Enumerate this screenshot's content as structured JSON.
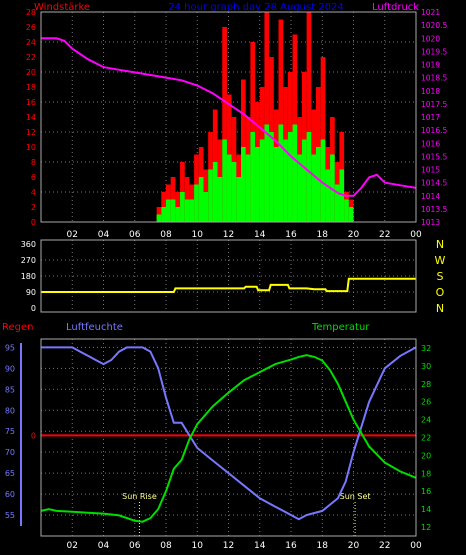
{
  "header": {
    "left_label": "Windstärke",
    "center_label": "24 hour graph day  28 August 2024",
    "right_label": "Luftdruck"
  },
  "x_axis": {
    "ticks": [
      "02",
      "04",
      "06",
      "08",
      "10",
      "12",
      "14",
      "16",
      "18",
      "20",
      "22",
      "00"
    ],
    "range_hours": [
      0,
      24
    ]
  },
  "colors": {
    "gust": "#ff0000",
    "average": "#00ff00",
    "pressure": "#ff00ff",
    "direction": "#ffff00",
    "rain": "#ff0000",
    "humidity": "#7777ff",
    "temperature": "#00dd00",
    "grid": "#777777",
    "frame": "#aaaaaa",
    "wind_axis": "#ff0000",
    "center_label": "#0000ff"
  },
  "chart_data": [
    {
      "type": "bar",
      "title": "",
      "ylabel": "Windstärke",
      "ylim": [
        0,
        28
      ],
      "yticks": [
        0,
        2,
        4,
        6,
        8,
        10,
        12,
        14,
        16,
        18,
        20,
        22,
        24,
        26,
        28
      ],
      "grid": true,
      "series": [
        {
          "name": "",
          "color": "#ff0000",
          "x_hours": [
            7.4,
            7.7,
            8.0,
            8.3,
            8.6,
            8.9,
            9.2,
            9.5,
            9.8,
            10.1,
            10.4,
            10.7,
            11.0,
            11.3,
            11.6,
            11.9,
            12.2,
            12.5,
            12.8,
            13.1,
            13.4,
            13.7,
            14.0,
            14.3,
            14.6,
            14.9,
            15.2,
            15.5,
            15.8,
            16.1,
            16.4,
            16.7,
            17.0,
            17.3,
            17.6,
            17.9,
            18.2,
            18.5,
            18.8,
            19.1,
            19.4,
            19.7
          ],
          "values": [
            2,
            4,
            5,
            6,
            4,
            8,
            6,
            5,
            9,
            10,
            7,
            12,
            15,
            11,
            26,
            17,
            14,
            9,
            19,
            14,
            24,
            16,
            18,
            28,
            22,
            15,
            27,
            18,
            20,
            25,
            14,
            20,
            28,
            15,
            18,
            22,
            10,
            14,
            8,
            12,
            4,
            3
          ]
        },
        {
          "name": "",
          "color": "#00ff00",
          "x_hours": [
            7.4,
            7.7,
            8.0,
            8.3,
            8.6,
            8.9,
            9.2,
            9.5,
            9.8,
            10.1,
            10.4,
            10.7,
            11.0,
            11.3,
            11.6,
            11.9,
            12.2,
            12.5,
            12.8,
            13.1,
            13.4,
            13.7,
            14.0,
            14.3,
            14.6,
            14.9,
            15.2,
            15.5,
            15.8,
            16.1,
            16.4,
            16.7,
            17.0,
            17.3,
            17.6,
            17.9,
            18.2,
            18.5,
            18.8,
            19.1,
            19.4,
            19.7
          ],
          "values": [
            1,
            2,
            3,
            3,
            2,
            4,
            3,
            3,
            5,
            6,
            4,
            7,
            8,
            6,
            11,
            9,
            8,
            6,
            10,
            9,
            12,
            10,
            11,
            13,
            12,
            10,
            13,
            11,
            12,
            13,
            9,
            11,
            12,
            9,
            10,
            11,
            7,
            9,
            5,
            7,
            3,
            2
          ]
        }
      ]
    },
    {
      "type": "line",
      "title": "",
      "ylabel": "Luftdruck",
      "ylim": [
        1013,
        1021
      ],
      "yticks": [
        1013,
        1013.5,
        1014,
        1014.5,
        1015,
        1015.5,
        1016,
        1016.5,
        1017,
        1017.5,
        1018,
        1018.5,
        1019,
        1019.5,
        1020,
        1020.5,
        1021
      ],
      "series": [
        {
          "name": "",
          "color": "#ff00ff",
          "x_hours": [
            0,
            1,
            1.5,
            2,
            3,
            4,
            5,
            6,
            7,
            8,
            9,
            10,
            11,
            12,
            13,
            14,
            15,
            16,
            17,
            18,
            19,
            19.5,
            20,
            20.5,
            21,
            21.5,
            22,
            23,
            24
          ],
          "values": [
            1020,
            1020,
            1019.9,
            1019.6,
            1019.2,
            1018.9,
            1018.8,
            1018.7,
            1018.6,
            1018.5,
            1018.4,
            1018.2,
            1017.9,
            1017.5,
            1017.1,
            1016.6,
            1016.1,
            1015.5,
            1015.0,
            1014.5,
            1014.1,
            1014.0,
            1014.0,
            1014.3,
            1014.7,
            1014.8,
            1014.5,
            1014.4,
            1014.3
          ]
        }
      ]
    },
    {
      "type": "line",
      "title": "",
      "ylabel": "",
      "ylim": [
        0,
        360
      ],
      "yticks": [
        0,
        90,
        180,
        270,
        360
      ],
      "right_labels": [
        "N",
        "W",
        "S",
        "O",
        "N"
      ],
      "series": [
        {
          "name": "",
          "color": "#ffff00",
          "x_hours": [
            0,
            8.5,
            8.6,
            13.0,
            13.1,
            13.8,
            13.9,
            14.6,
            14.7,
            15.8,
            15.9,
            17.0,
            17.5,
            18.2,
            18.3,
            19.6,
            19.7,
            24
          ],
          "values": [
            90,
            90,
            110,
            110,
            120,
            120,
            100,
            100,
            130,
            130,
            110,
            110,
            105,
            105,
            95,
            95,
            165,
            165
          ]
        }
      ]
    },
    {
      "type": "line",
      "title": "",
      "labels": {
        "rain": "Regen",
        "humidity": "Luftfeuchte",
        "temperature": "Temperatur"
      },
      "left_axis": {
        "ylim": [
          50,
          97
        ],
        "yticks": [
          55,
          60,
          65,
          70,
          75,
          80,
          85,
          90,
          95
        ]
      },
      "rain_axis": {
        "ticks": [
          0
        ]
      },
      "right_axis": {
        "ylim": [
          11,
          33
        ],
        "yticks": [
          12,
          14,
          16,
          18,
          20,
          22,
          24,
          26,
          28,
          30,
          32
        ]
      },
      "annotations": [
        {
          "label": "Sun Rise",
          "x_hour": 6.3
        },
        {
          "label": "Sun Set",
          "x_hour": 20.1
        }
      ],
      "series": [
        {
          "name": "Regen",
          "color": "#ff0000",
          "axis": "rain",
          "x_hours": [
            0,
            24
          ],
          "values": [
            0,
            0
          ]
        },
        {
          "name": "Luftfeuchte",
          "color": "#7777ff",
          "axis": "left",
          "x_hours": [
            0,
            1,
            2,
            2.5,
            3,
            3.5,
            4,
            4.5,
            5,
            5.5,
            6,
            6.5,
            7,
            7.5,
            8,
            8.5,
            9,
            9.5,
            10,
            11,
            12,
            13,
            14,
            15,
            16,
            16.5,
            17,
            18,
            19,
            19.5,
            20,
            21,
            22,
            23,
            24
          ],
          "values": [
            95,
            95,
            95,
            94,
            93,
            92,
            91,
            92,
            94,
            95,
            95,
            95,
            94,
            90,
            83,
            77,
            77,
            74,
            71,
            68,
            65,
            62,
            59,
            57,
            55,
            54,
            55,
            56,
            59,
            63,
            70,
            82,
            90,
            93,
            95
          ]
        },
        {
          "name": "Temperatur",
          "color": "#00dd00",
          "axis": "right",
          "x_hours": [
            0,
            0.5,
            1,
            2,
            3,
            4,
            5,
            6,
            6.5,
            7,
            7.5,
            8,
            8.5,
            9,
            9.5,
            10,
            11,
            12,
            13,
            14,
            15,
            16,
            16.5,
            17,
            17.5,
            18,
            18.5,
            19,
            19.5,
            20,
            21,
            22,
            23,
            24
          ],
          "values": [
            13.8,
            14.0,
            13.8,
            13.7,
            13.6,
            13.5,
            13.3,
            12.7,
            12.6,
            13.0,
            14.0,
            16.0,
            18.5,
            19.5,
            21.8,
            23.5,
            25.5,
            27.0,
            28.4,
            29.3,
            30.2,
            30.7,
            31.0,
            31.2,
            31.0,
            30.6,
            29.5,
            28.0,
            26.0,
            24.0,
            21.0,
            19.2,
            18.2,
            17.5
          ]
        }
      ]
    }
  ]
}
